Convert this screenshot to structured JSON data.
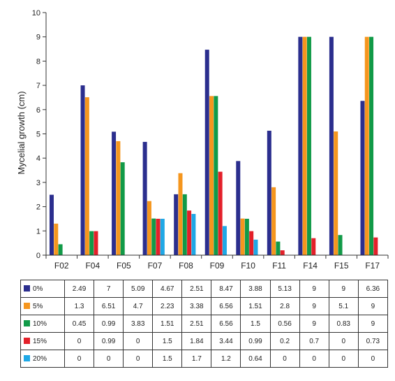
{
  "chart_data": {
    "type": "bar",
    "title": "",
    "xlabel": "",
    "ylabel": "Mycelial growth (cm)",
    "ylim": [
      0,
      10
    ],
    "yticks": [
      0,
      1,
      2,
      3,
      4,
      5,
      6,
      7,
      8,
      9,
      10
    ],
    "grid": false,
    "legend": "table-below",
    "categories": [
      "F02",
      "F04",
      "F05",
      "F07",
      "F08",
      "F09",
      "F10",
      "F11",
      "F14",
      "F15",
      "F17"
    ],
    "series": [
      {
        "name": "0%",
        "color": "#2b2e8e",
        "values": [
          2.49,
          7,
          5.09,
          4.67,
          2.51,
          8.47,
          3.88,
          5.13,
          9,
          9,
          6.36
        ]
      },
      {
        "name": "5%",
        "color": "#f5961e",
        "values": [
          1.3,
          6.51,
          4.7,
          2.23,
          3.38,
          6.56,
          1.51,
          2.8,
          9,
          5.1,
          9
        ]
      },
      {
        "name": "10%",
        "color": "#119a48",
        "values": [
          0.45,
          0.99,
          3.83,
          1.51,
          2.51,
          6.56,
          1.5,
          0.56,
          9,
          0.83,
          9
        ]
      },
      {
        "name": "15%",
        "color": "#e3202a",
        "values": [
          0,
          0.99,
          0,
          1.5,
          1.84,
          3.44,
          0.99,
          0.2,
          0.7,
          0,
          0.73
        ]
      },
      {
        "name": "20%",
        "color": "#1fa8e6",
        "values": [
          0,
          0,
          0,
          1.5,
          1.7,
          1.2,
          0.64,
          0,
          0,
          0,
          0
        ]
      }
    ]
  }
}
